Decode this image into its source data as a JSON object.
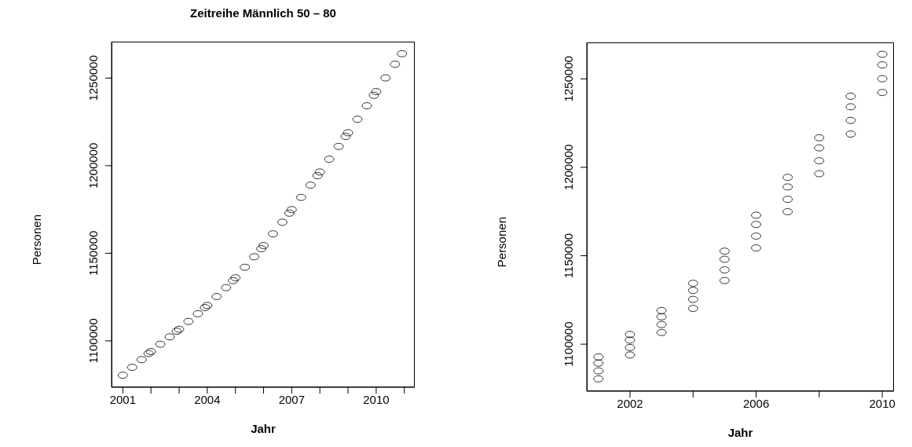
{
  "chart_data": [
    {
      "type": "scatter",
      "title": "Zeitreihe Männlich 50 – 80",
      "xlabel": "Jahr",
      "ylabel": "Personen",
      "color": "#000000",
      "marker": "circle",
      "x": [
        2001,
        2001.333,
        2001.667,
        2001.917,
        2002,
        2002.333,
        2002.667,
        2002.917,
        2003,
        2003.333,
        2003.667,
        2003.917,
        2004,
        2004.333,
        2004.667,
        2004.917,
        2005,
        2005.333,
        2005.667,
        2005.917,
        2006,
        2006.333,
        2006.667,
        2006.917,
        2007,
        2007.333,
        2007.667,
        2007.917,
        2008,
        2008.333,
        2008.667,
        2008.917,
        2009,
        2009.333,
        2009.667,
        2009.917,
        2010,
        2010.333,
        2010.667,
        2010.917
      ],
      "values": [
        1080400,
        1084900,
        1089300,
        1092800,
        1093900,
        1098100,
        1102300,
        1105500,
        1106600,
        1111100,
        1115500,
        1119000,
        1120200,
        1125300,
        1130400,
        1134400,
        1136000,
        1142000,
        1148000,
        1152600,
        1154400,
        1161100,
        1167700,
        1172900,
        1174900,
        1181900,
        1188900,
        1194300,
        1196400,
        1203700,
        1211000,
        1216700,
        1218800,
        1226500,
        1234200,
        1240200,
        1242300,
        1250100,
        1257900,
        1263900
      ],
      "xlim": [
        2000.6,
        2011.37
      ],
      "xticks": [
        2001,
        {
          "value": 2002,
          "label": null
        },
        {
          "value": 2003,
          "label": null
        },
        2004,
        {
          "value": 2005,
          "label": null
        },
        {
          "value": 2006,
          "label": null
        },
        2007,
        {
          "value": 2008,
          "label": null
        },
        {
          "value": 2009,
          "label": null
        },
        2010,
        {
          "value": 2011,
          "label": null
        }
      ],
      "ylim": [
        1073500,
        1270800
      ],
      "yticks": [
        1100000,
        1150000,
        1200000,
        1250000
      ]
    },
    {
      "type": "scatter",
      "xlabel": "Jahr",
      "ylabel": "Personen",
      "color": "#000000",
      "marker": "circle",
      "x": [
        2001,
        2001,
        2001,
        2001,
        2002,
        2002,
        2002,
        2002,
        2003,
        2003,
        2003,
        2003,
        2004,
        2004,
        2004,
        2004,
        2005,
        2005,
        2005,
        2005,
        2006,
        2006,
        2006,
        2006,
        2007,
        2007,
        2007,
        2007,
        2008,
        2008,
        2008,
        2008,
        2009,
        2009,
        2009,
        2009,
        2010,
        2010,
        2010,
        2010
      ],
      "values": [
        1080400,
        1084900,
        1089300,
        1092800,
        1093900,
        1098100,
        1102300,
        1105500,
        1106600,
        1111100,
        1115500,
        1119000,
        1120200,
        1125300,
        1130400,
        1134400,
        1136000,
        1142000,
        1148000,
        1152600,
        1154400,
        1161100,
        1167700,
        1172900,
        1174900,
        1181900,
        1188900,
        1194300,
        1196400,
        1203700,
        1211000,
        1216700,
        1218800,
        1226500,
        1234200,
        1240200,
        1242300,
        1250100,
        1257900,
        1263900
      ],
      "xlim": [
        2000.63,
        2010.37
      ],
      "xticks": [
        2002,
        {
          "value": 2004,
          "label": null
        },
        2006,
        {
          "value": 2008,
          "label": null
        },
        2010
      ],
      "ylim": [
        1073400,
        1270600
      ],
      "yticks": [
        1100000,
        1150000,
        1200000,
        1250000
      ]
    }
  ]
}
